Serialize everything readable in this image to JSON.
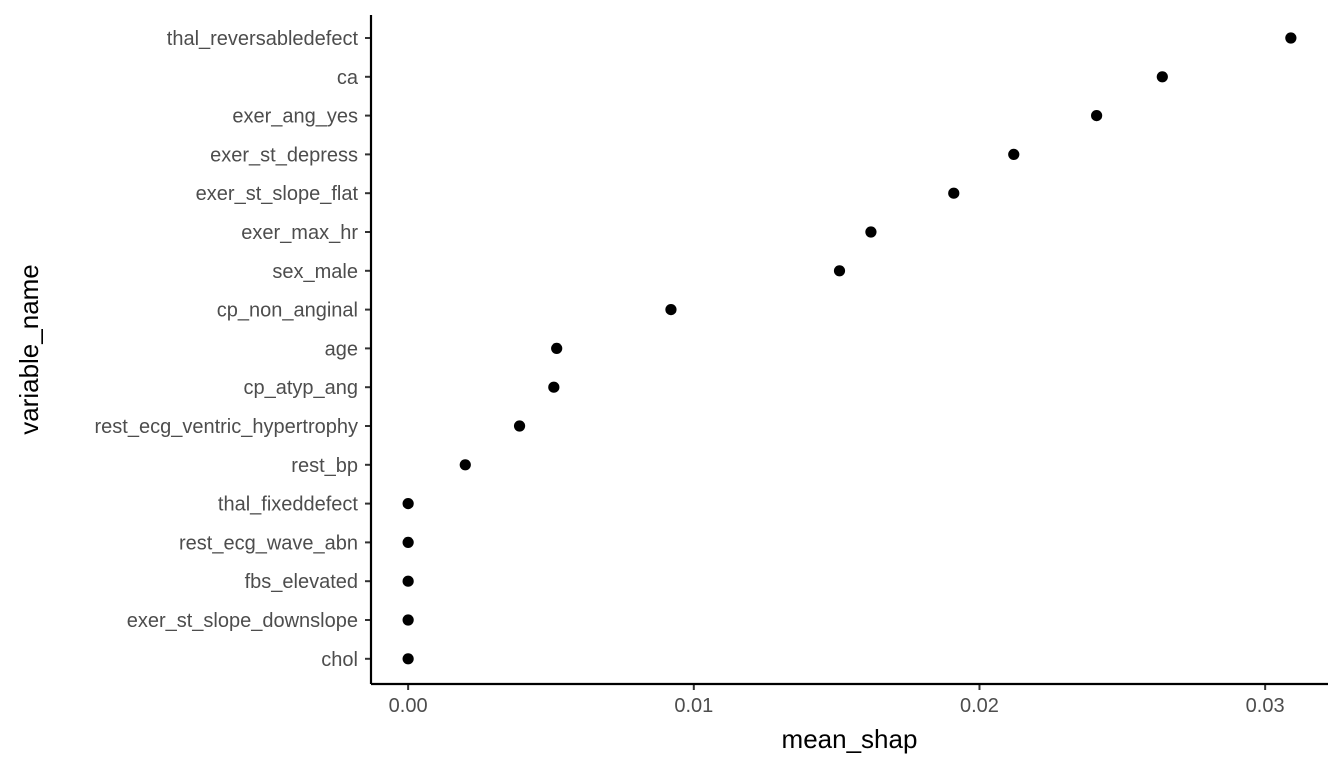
{
  "chart_data": {
    "type": "scatter",
    "title": "",
    "xlabel": "mean_shap",
    "ylabel": "variable_name",
    "xlim": [
      -0.0013,
      0.0322
    ],
    "x_ticks": [
      0.0,
      0.01,
      0.02,
      0.03
    ],
    "x_tick_labels": [
      "0.00",
      "0.01",
      "0.02",
      "0.03"
    ],
    "grid": false,
    "legend": "none",
    "point_color": "#000000",
    "categories": [
      "thal_reversabledefect",
      "ca",
      "exer_ang_yes",
      "exer_st_depress",
      "exer_st_slope_flat",
      "exer_max_hr",
      "sex_male",
      "cp_non_anginal",
      "age",
      "cp_atyp_ang",
      "rest_ecg_ventric_hypertrophy",
      "rest_bp",
      "thal_fixeddefect",
      "rest_ecg_wave_abn",
      "fbs_elevated",
      "exer_st_slope_downslope",
      "chol"
    ],
    "values": [
      0.0309,
      0.0264,
      0.0241,
      0.0212,
      0.0191,
      0.0162,
      0.0151,
      0.0092,
      0.0052,
      0.0051,
      0.0039,
      0.002,
      0.0,
      0.0,
      0.0,
      0.0,
      0.0
    ]
  }
}
